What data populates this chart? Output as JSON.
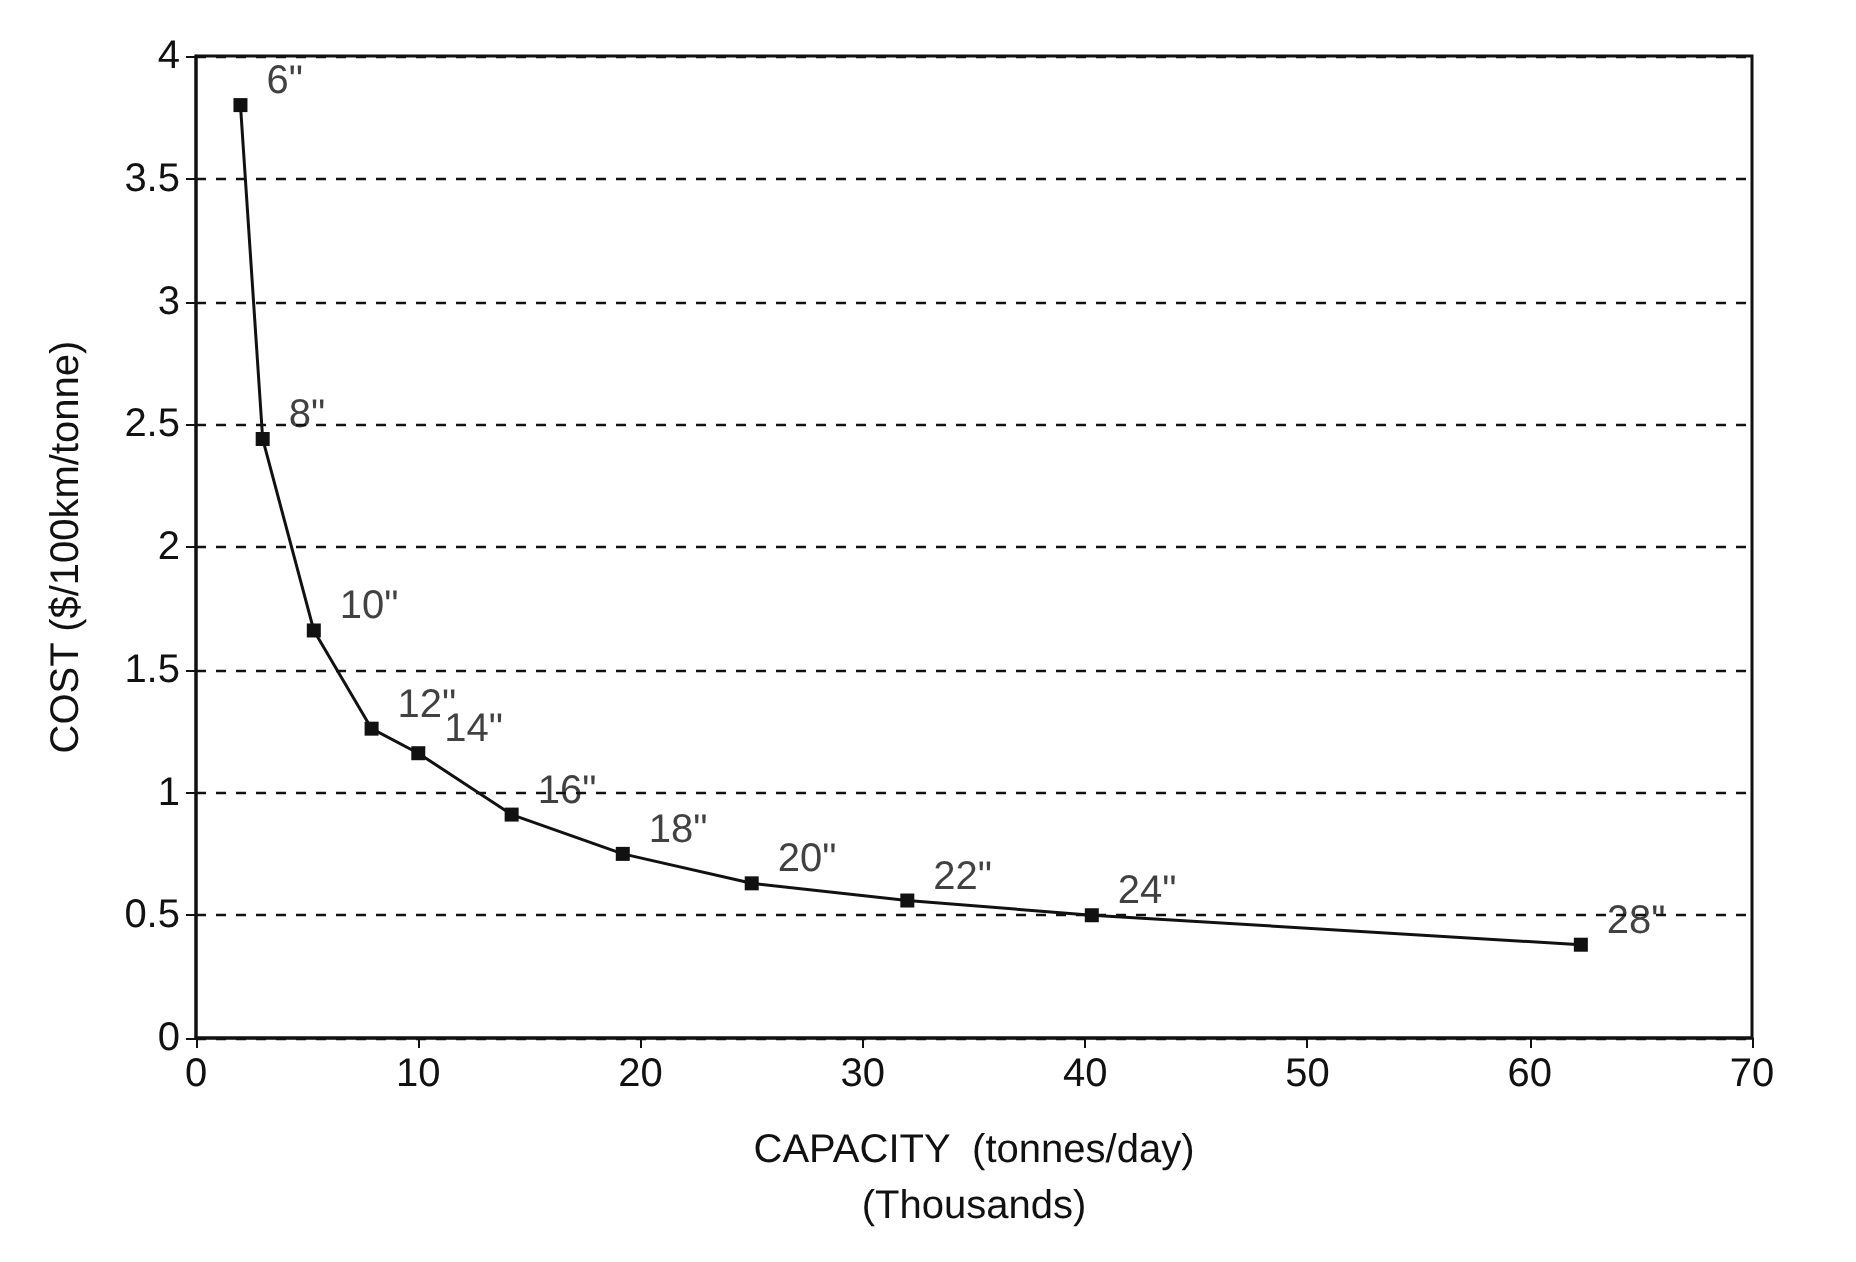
{
  "chart_data": {
    "type": "line",
    "xlabel": "CAPACITY  (tonnes/day)\n(Thousands)",
    "ylabel": "COST ($/100km/tonne)",
    "series": [
      {
        "color": "#111111",
        "x": [
          2,
          3,
          5.3,
          7.9,
          10,
          14.2,
          19.2,
          25,
          32,
          40.3,
          62.3
        ],
        "values": [
          3.8,
          2.44,
          1.66,
          1.26,
          1.16,
          0.91,
          0.75,
          0.63,
          0.56,
          0.5,
          0.38
        ]
      }
    ],
    "annotations": [
      {
        "text": "6\"",
        "x": 2,
        "y": 3.8
      },
      {
        "text": "8\"",
        "x": 3,
        "y": 2.44
      },
      {
        "text": "10\"",
        "x": 5.3,
        "y": 1.66
      },
      {
        "text": "12\"",
        "x": 7.9,
        "y": 1.26
      },
      {
        "text": "14\"",
        "x": 10,
        "y": 1.16
      },
      {
        "text": "16\"",
        "x": 14.2,
        "y": 0.91
      },
      {
        "text": "18\"",
        "x": 19.2,
        "y": 0.75
      },
      {
        "text": "20\"",
        "x": 25,
        "y": 0.63
      },
      {
        "text": "22\"",
        "x": 32,
        "y": 0.56
      },
      {
        "text": "24\"",
        "x": 40.3,
        "y": 0.5
      },
      {
        "text": "28\"",
        "x": 62.3,
        "y": 0.38
      }
    ],
    "xlim": [
      0,
      70
    ],
    "xticks": [
      0,
      10,
      20,
      30,
      40,
      50,
      60,
      70
    ],
    "ylim": [
      0,
      4
    ],
    "yticks": [
      0,
      0.5,
      1,
      1.5,
      2,
      2.5,
      3,
      3.5,
      4
    ],
    "grid": "y",
    "marker": "square",
    "line_style": "solid"
  }
}
